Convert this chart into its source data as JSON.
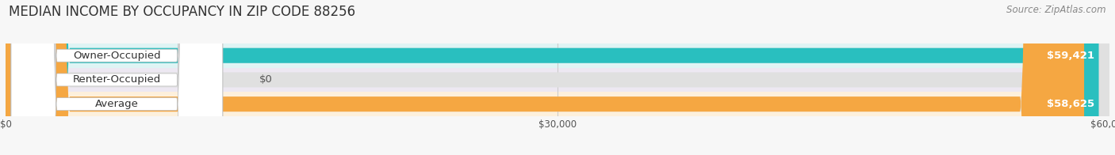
{
  "title": "MEDIAN INCOME BY OCCUPANCY IN ZIP CODE 88256",
  "source": "Source: ZipAtlas.com",
  "categories": [
    "Owner-Occupied",
    "Renter-Occupied",
    "Average"
  ],
  "values": [
    59421,
    0,
    58625
  ],
  "max_value": 60000,
  "bar_colors": [
    "#29bfbf",
    "#b39dbd",
    "#f5a742"
  ],
  "value_labels": [
    "$59,421",
    "$0",
    "$58,625"
  ],
  "xtick_labels": [
    "$0",
    "$30,000",
    "$60,000"
  ],
  "xtick_values": [
    0,
    30000,
    60000
  ],
  "title_fontsize": 12,
  "source_fontsize": 8.5,
  "label_fontsize": 9.5,
  "value_fontsize": 9.5,
  "bg_color": "#f7f7f7",
  "row_bg_colors": [
    "#dff4f4",
    "#ede8f2",
    "#fdf0dc"
  ]
}
